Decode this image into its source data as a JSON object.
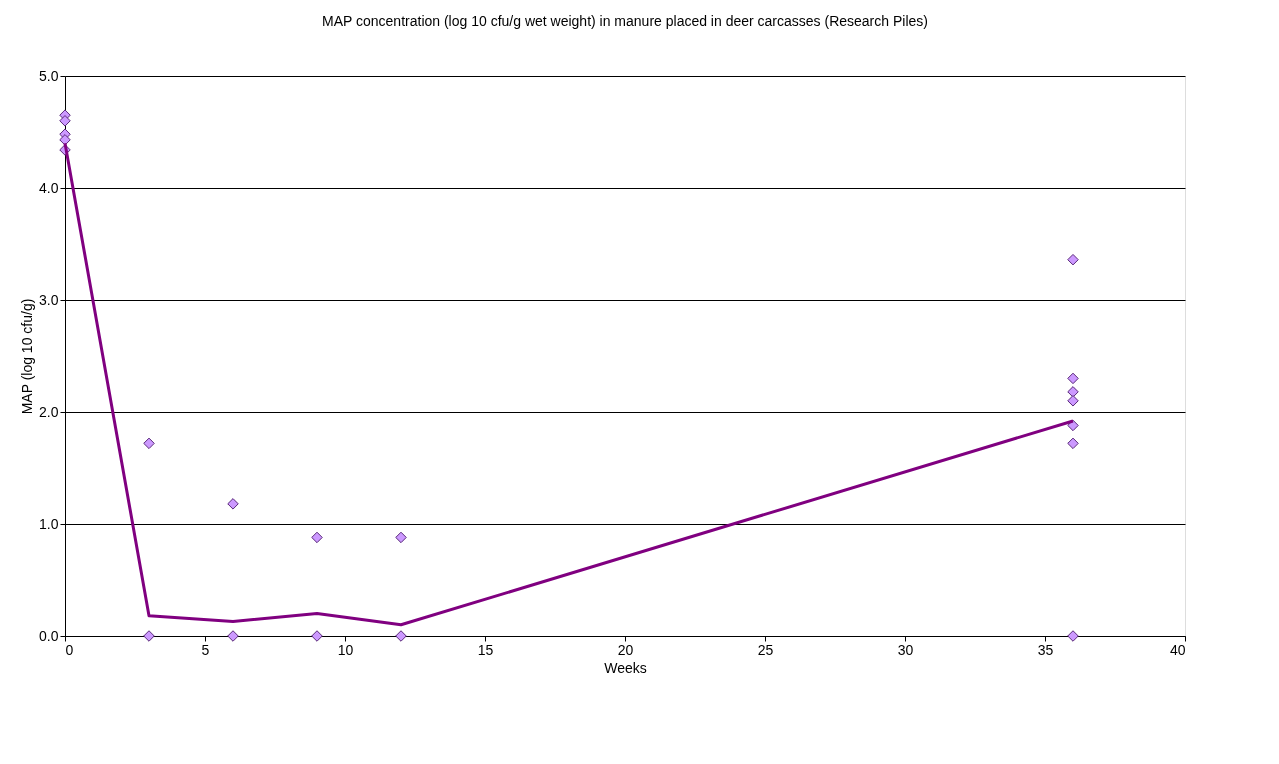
{
  "chart_data": {
    "type": "scatter",
    "title": "MAP concentration (log 10 cfu/g wet weight) in manure placed in deer carcasses (Research Piles)",
    "xlabel": "Weeks",
    "ylabel": "MAP (log 10 cfu/g)",
    "xlim": [
      0,
      40
    ],
    "xticks": [
      0,
      5,
      10,
      15,
      20,
      25,
      30,
      35,
      40
    ],
    "ylim": [
      0,
      5
    ],
    "yticks": [
      {
        "value": 0,
        "label": "0.0"
      },
      {
        "value": 1,
        "label": "1.0"
      },
      {
        "value": 2,
        "label": "2.0"
      },
      {
        "value": 3,
        "label": "3.0"
      },
      {
        "value": 4,
        "label": "4.0"
      },
      {
        "value": 5,
        "label": "5.0"
      }
    ],
    "grid": "y",
    "series": [
      {
        "color": "#cc99ff",
        "marker": "diamond",
        "x": [
          0,
          0,
          0,
          0,
          0,
          3,
          3,
          6,
          6,
          9,
          9,
          12,
          12,
          36,
          36,
          36,
          36,
          36,
          36,
          36
        ],
        "values": [
          4.65,
          4.6,
          4.48,
          4.43,
          4.34,
          1.72,
          0,
          1.18,
          0,
          0.88,
          0,
          0.88,
          0,
          3.36,
          2.3,
          2.18,
          2.1,
          1.88,
          1.72,
          0
        ]
      },
      {
        "type": "line",
        "color": "#800080",
        "marker": "none",
        "x": [
          0,
          3,
          6,
          9,
          12,
          36
        ],
        "values": [
          4.4,
          0.18,
          0.13,
          0.2,
          0.1,
          1.92
        ]
      }
    ]
  }
}
